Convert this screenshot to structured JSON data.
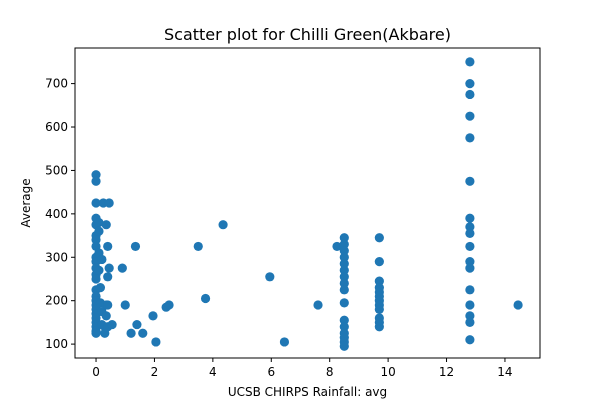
{
  "chart_data": {
    "type": "scatter",
    "title": "Scatter plot for Chilli Green(Akbare)",
    "xlabel": "UCSB CHIRPS Rainfall: avg",
    "ylabel": "Average",
    "xlim": [
      -0.72,
      15.2
    ],
    "ylim": [
      68,
      782
    ],
    "xticks": [
      0,
      2,
      4,
      6,
      8,
      10,
      12,
      14
    ],
    "yticks": [
      100,
      200,
      300,
      400,
      500,
      600,
      700
    ],
    "grid": false,
    "legend": "none",
    "marker_color": "#1f77b4",
    "series": [
      {
        "name": "Average",
        "points": [
          [
            0,
            490
          ],
          [
            0,
            475
          ],
          [
            0,
            425
          ],
          [
            0,
            390
          ],
          [
            0,
            375
          ],
          [
            0,
            350
          ],
          [
            0,
            340
          ],
          [
            0,
            325
          ],
          [
            0,
            300
          ],
          [
            0,
            290
          ],
          [
            0,
            275
          ],
          [
            0,
            260
          ],
          [
            0,
            250
          ],
          [
            0,
            225
          ],
          [
            0,
            210
          ],
          [
            0,
            200
          ],
          [
            0,
            190
          ],
          [
            0,
            180
          ],
          [
            0,
            170
          ],
          [
            0,
            160
          ],
          [
            0,
            150
          ],
          [
            0,
            140
          ],
          [
            0,
            130
          ],
          [
            0,
            125
          ],
          [
            0.1,
            380
          ],
          [
            0.1,
            360
          ],
          [
            0.1,
            310
          ],
          [
            0.1,
            270
          ],
          [
            0.15,
            230
          ],
          [
            0.15,
            195
          ],
          [
            0.2,
            295
          ],
          [
            0.2,
            175
          ],
          [
            0.2,
            145
          ],
          [
            0.25,
            425
          ],
          [
            0.3,
            140
          ],
          [
            0.3,
            125
          ],
          [
            0.35,
            375
          ],
          [
            0.35,
            190
          ],
          [
            0.35,
            165
          ],
          [
            0.4,
            325
          ],
          [
            0.4,
            255
          ],
          [
            0.4,
            190
          ],
          [
            0.4,
            140
          ],
          [
            0.45,
            425
          ],
          [
            0.45,
            275
          ],
          [
            0.55,
            145
          ],
          [
            0.9,
            275
          ],
          [
            1.0,
            190
          ],
          [
            1.2,
            125
          ],
          [
            1.35,
            325
          ],
          [
            1.4,
            145
          ],
          [
            1.6,
            125
          ],
          [
            1.95,
            165
          ],
          [
            2.05,
            105
          ],
          [
            2.4,
            185
          ],
          [
            2.5,
            190
          ],
          [
            3.5,
            325
          ],
          [
            3.75,
            205
          ],
          [
            4.35,
            375
          ],
          [
            5.95,
            255
          ],
          [
            6.45,
            105
          ],
          [
            7.6,
            190
          ],
          [
            8.25,
            325
          ],
          [
            8.5,
            345
          ],
          [
            8.5,
            330
          ],
          [
            8.5,
            315
          ],
          [
            8.5,
            300
          ],
          [
            8.5,
            285
          ],
          [
            8.5,
            270
          ],
          [
            8.5,
            255
          ],
          [
            8.5,
            240
          ],
          [
            8.5,
            225
          ],
          [
            8.5,
            195
          ],
          [
            8.5,
            155
          ],
          [
            8.5,
            140
          ],
          [
            8.5,
            125
          ],
          [
            8.5,
            115
          ],
          [
            8.5,
            105
          ],
          [
            8.5,
            95
          ],
          [
            9.7,
            345
          ],
          [
            9.7,
            290
          ],
          [
            9.7,
            245
          ],
          [
            9.7,
            230
          ],
          [
            9.7,
            220
          ],
          [
            9.7,
            210
          ],
          [
            9.7,
            200
          ],
          [
            9.7,
            190
          ],
          [
            9.7,
            180
          ],
          [
            9.7,
            160
          ],
          [
            9.7,
            150
          ],
          [
            9.7,
            140
          ],
          [
            12.8,
            750
          ],
          [
            12.8,
            700
          ],
          [
            12.8,
            675
          ],
          [
            12.8,
            625
          ],
          [
            12.8,
            575
          ],
          [
            12.8,
            475
          ],
          [
            12.8,
            390
          ],
          [
            12.8,
            370
          ],
          [
            12.8,
            355
          ],
          [
            12.8,
            325
          ],
          [
            12.8,
            290
          ],
          [
            12.8,
            275
          ],
          [
            12.8,
            225
          ],
          [
            12.8,
            190
          ],
          [
            12.8,
            165
          ],
          [
            12.8,
            150
          ],
          [
            12.8,
            110
          ],
          [
            14.45,
            190
          ]
        ]
      }
    ]
  }
}
